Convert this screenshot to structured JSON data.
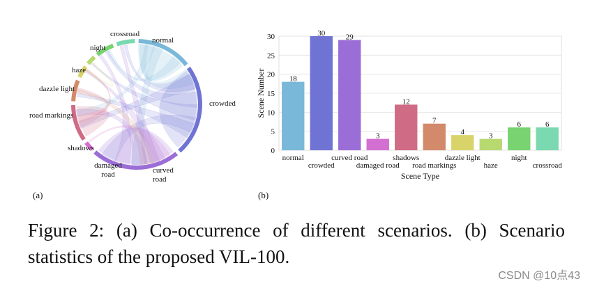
{
  "chart_data": [
    {
      "type": "chord",
      "panel_label": "(a)",
      "categories": [
        "normal",
        "crowded",
        "curved road",
        "damaged road",
        "shadows",
        "road markings",
        "dazzle light",
        "haze",
        "night",
        "crossroad"
      ],
      "display_labels": [
        "normal",
        "crowded",
        "curved\nroad",
        "damaged\nroad",
        "shadows",
        "road markings",
        "dazzle light",
        "haze",
        "night",
        "crossroad"
      ],
      "values": [
        18,
        30,
        29,
        3,
        12,
        7,
        4,
        3,
        6,
        6
      ],
      "colors": [
        "#7ab8d9",
        "#6f74d4",
        "#9b6dd6",
        "#d36fd0",
        "#d06b86",
        "#d38a6a",
        "#d9d46a",
        "#b8d970",
        "#78d370",
        "#7ad9b0"
      ]
    },
    {
      "type": "bar",
      "panel_label": "(b)",
      "categories": [
        "normal",
        "crowded",
        "curved road",
        "damaged road",
        "shadows",
        "road markings",
        "dazzle light",
        "haze",
        "night",
        "crossroad"
      ],
      "values": [
        18,
        30,
        29,
        3,
        12,
        7,
        4,
        3,
        6,
        6
      ],
      "colors": [
        "#7ab8d9",
        "#6f74d4",
        "#9b6dd6",
        "#d36fd0",
        "#d06b86",
        "#d38a6a",
        "#d9d46a",
        "#b8d970",
        "#78d370",
        "#7ad9b0"
      ],
      "xlabel": "Scene Type",
      "ylabel": "Scene Number",
      "ylim": [
        0,
        30
      ],
      "yticks": [
        0,
        5,
        10,
        15,
        20,
        25,
        30
      ]
    }
  ],
  "caption": "Figure 2: (a) Co-occurrence of different scenarios. (b) Scenario statistics of the proposed VIL-100.",
  "watermark": "CSDN @10点43"
}
